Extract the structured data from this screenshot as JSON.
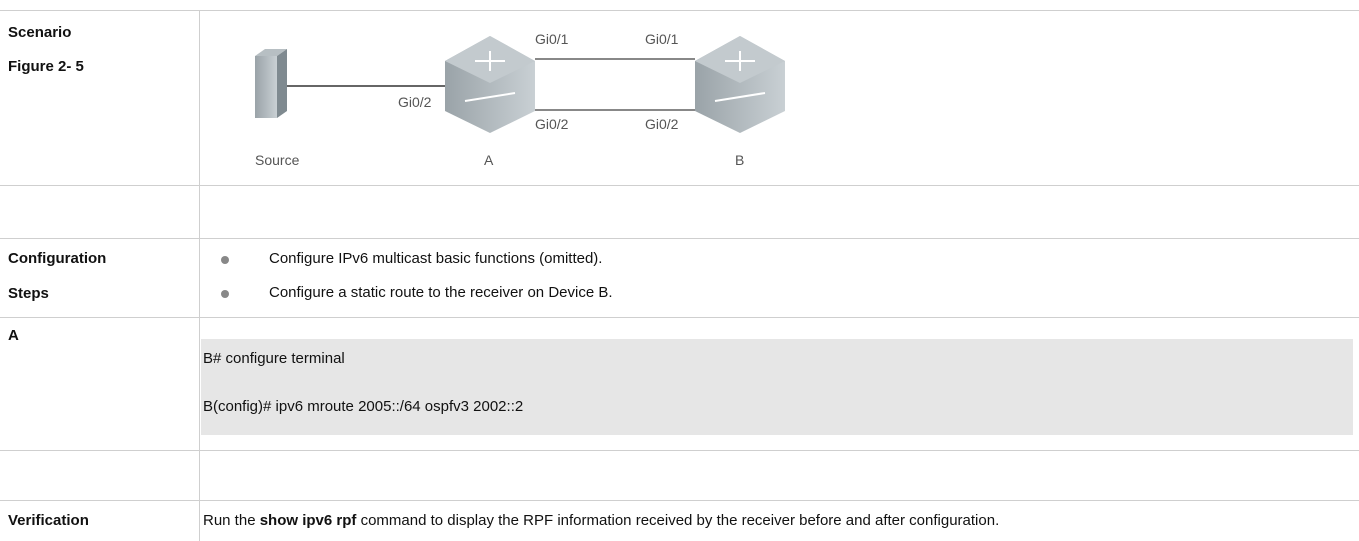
{
  "table": {
    "scenario": {
      "label": "Scenario",
      "figure": "Figure 2- 5"
    },
    "diagram": {
      "ports": [
        "Gi0/1",
        "Gi0/1",
        "Gi0/2",
        "Gi0/2",
        "Gi0/2"
      ],
      "nodes": [
        "Source",
        "A",
        "B"
      ]
    },
    "configuration": {
      "label": [
        "Configuration",
        "Steps"
      ],
      "bullets": [
        "Configure IPv6 multicast basic functions (omitted).",
        "Configure a static route to the receiver on Device B."
      ]
    },
    "device": {
      "label": "A",
      "code": [
        "B# configure terminal",
        "B(config)# ipv6 mroute 2005::/64 ospfv3 2002::2"
      ]
    },
    "verification": {
      "label": "Verification",
      "text_before": "Run the ",
      "command": "show ipv6 rpf",
      "text_after": " command to display the RPF information received by the receiver before and after configuration."
    }
  }
}
